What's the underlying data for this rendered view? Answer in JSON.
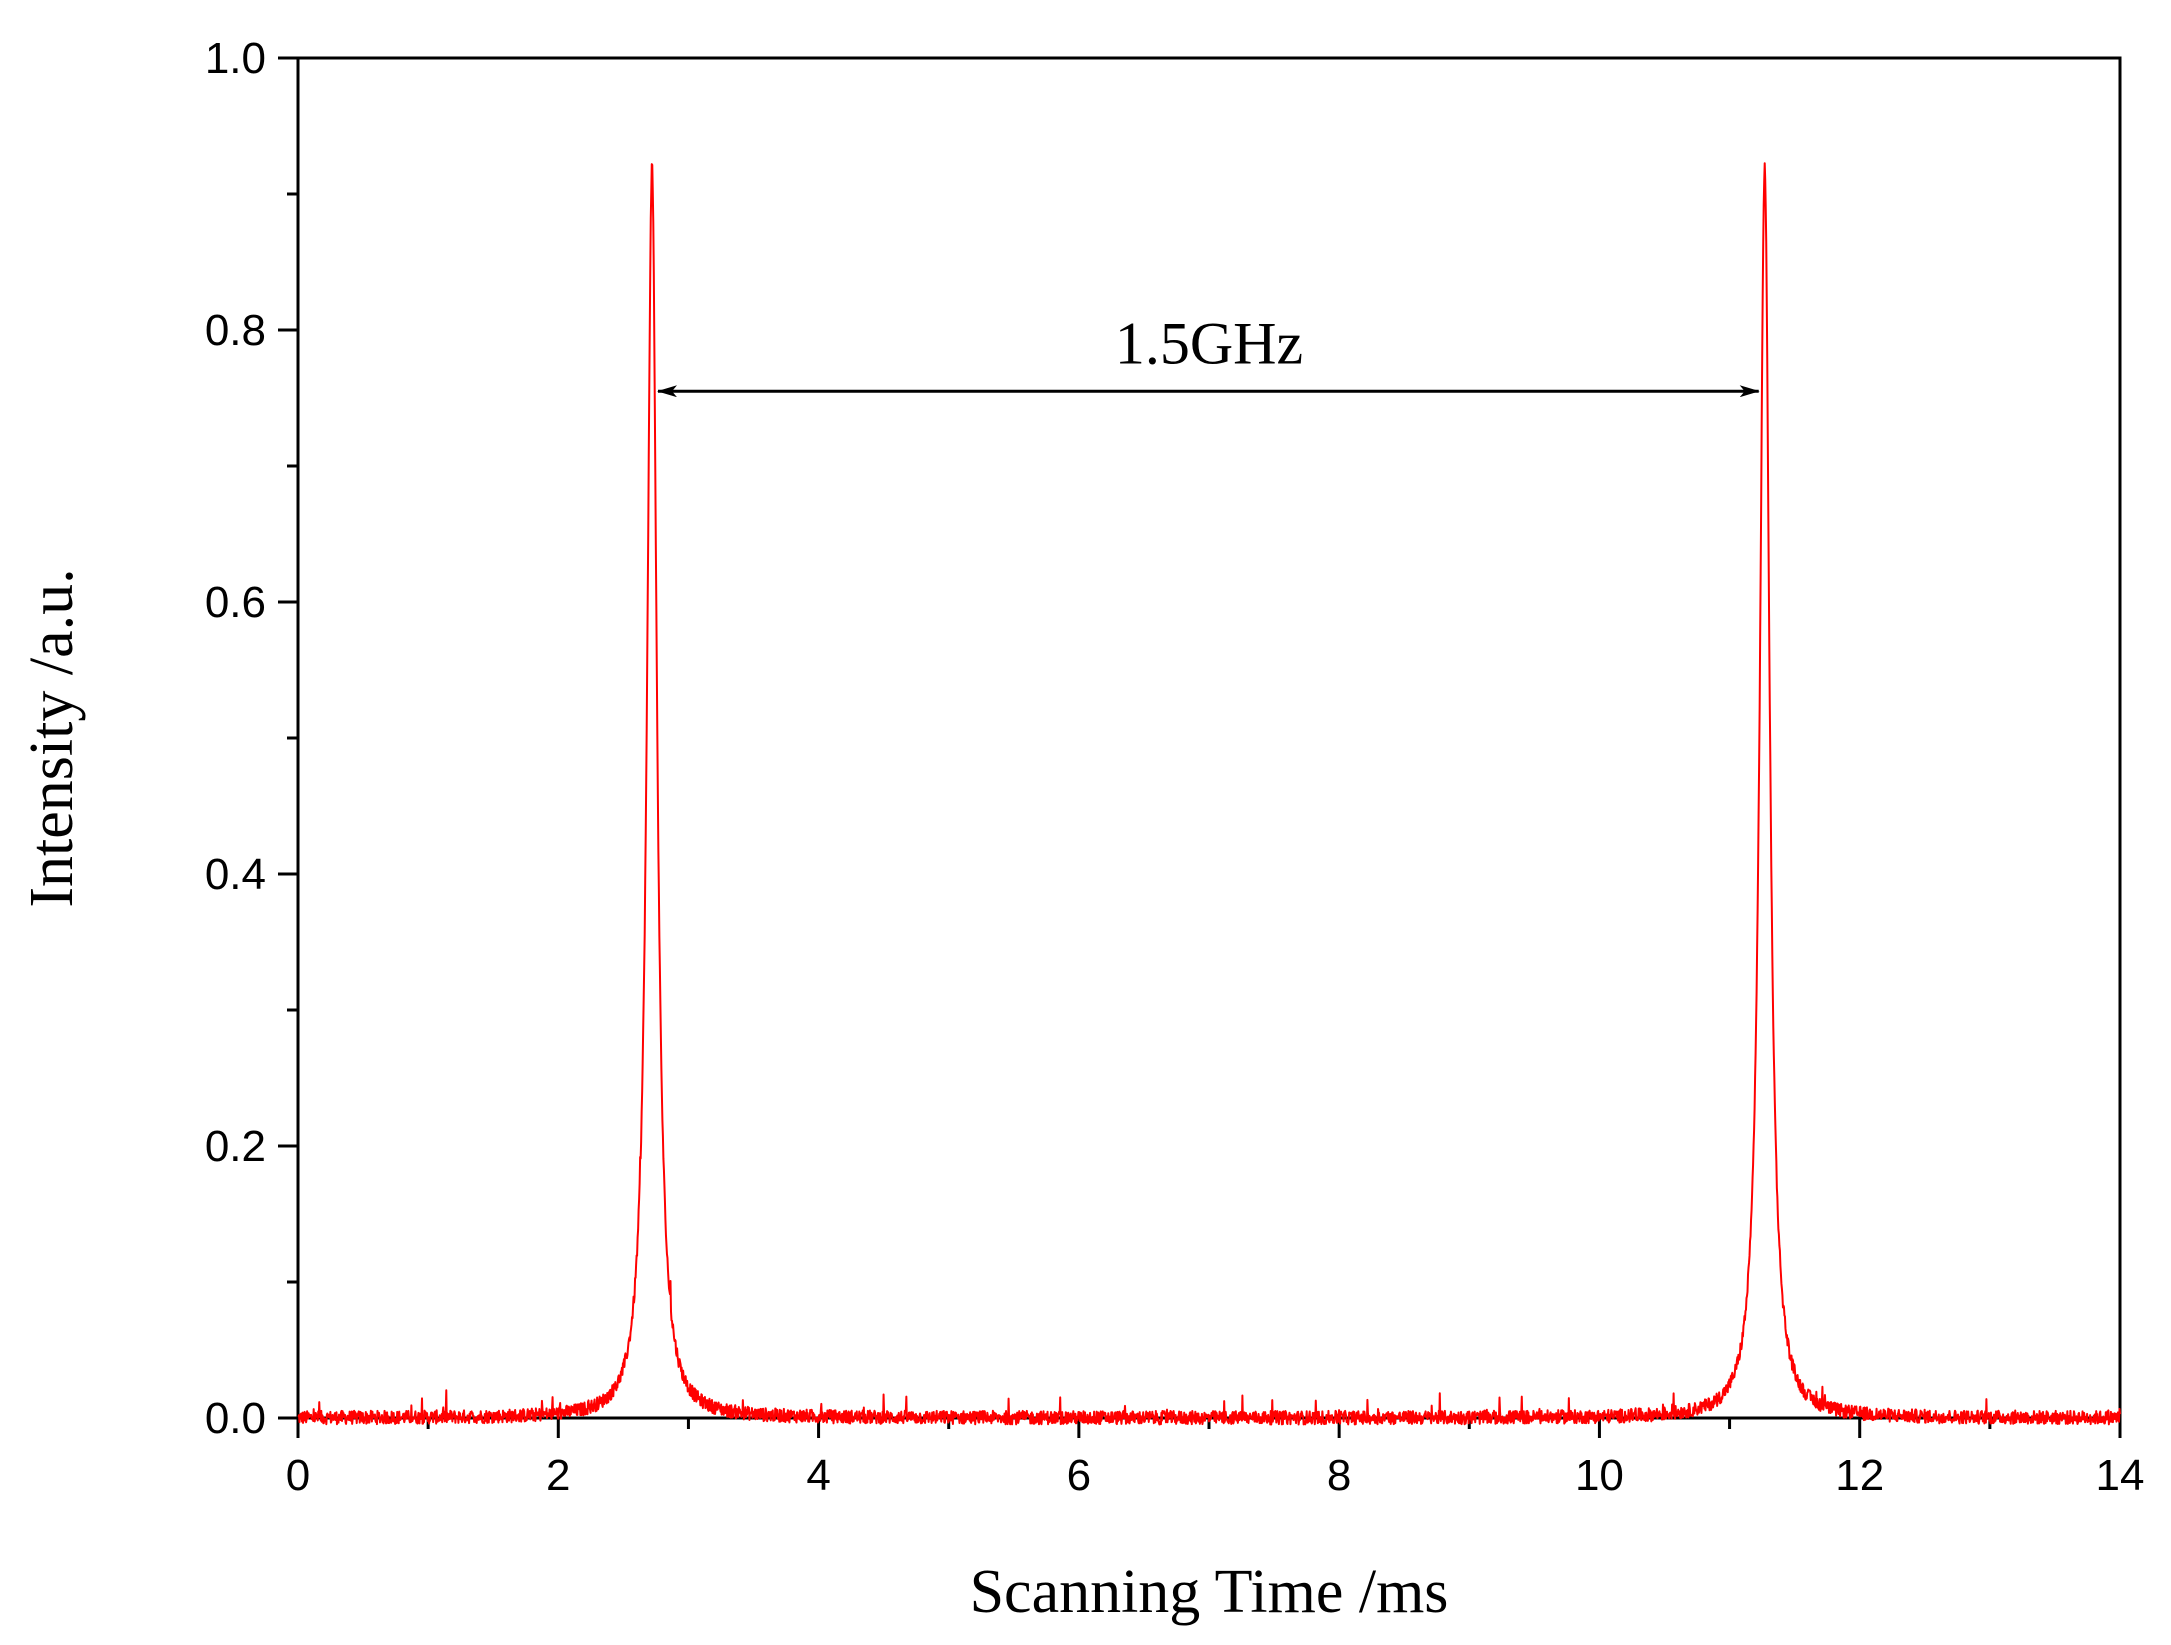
{
  "chart_data": {
    "type": "line",
    "title": "",
    "xlabel": "Scanning Time /ms",
    "ylabel": "Intensity /a.u.",
    "xlim": [
      0,
      14
    ],
    "ylim": [
      0,
      1.0
    ],
    "x_ticks": [
      0,
      2,
      4,
      6,
      8,
      10,
      12,
      14
    ],
    "x_tick_labels": [
      "0",
      "2",
      "4",
      "6",
      "8",
      "10",
      "12",
      "14"
    ],
    "x_minor_ticks": [
      1,
      3,
      5,
      7,
      9,
      11,
      13
    ],
    "y_ticks": [
      0.0,
      0.2,
      0.4,
      0.6,
      0.8,
      1.0
    ],
    "y_tick_labels": [
      "0.0",
      "0.2",
      "0.4",
      "0.6",
      "0.8",
      "1.0"
    ],
    "y_minor_ticks": [
      0.1,
      0.3,
      0.5,
      0.7,
      0.9
    ],
    "grid": false,
    "legend": "none",
    "series": [
      {
        "color": "#ff0000",
        "baseline": 0.0,
        "noise_amplitude": 0.01,
        "peaks": [
          {
            "center": 2.72,
            "height": 0.92,
            "hwhm": 0.045
          },
          {
            "center": 11.27,
            "height": 0.92,
            "hwhm": 0.045
          }
        ]
      }
    ],
    "annotations": [
      {
        "text": "1.5GHz",
        "x": 7.0,
        "y": 0.79,
        "arrow_from": [
          2.72,
          0.755
        ],
        "arrow_to": [
          11.27,
          0.755
        ]
      }
    ]
  }
}
